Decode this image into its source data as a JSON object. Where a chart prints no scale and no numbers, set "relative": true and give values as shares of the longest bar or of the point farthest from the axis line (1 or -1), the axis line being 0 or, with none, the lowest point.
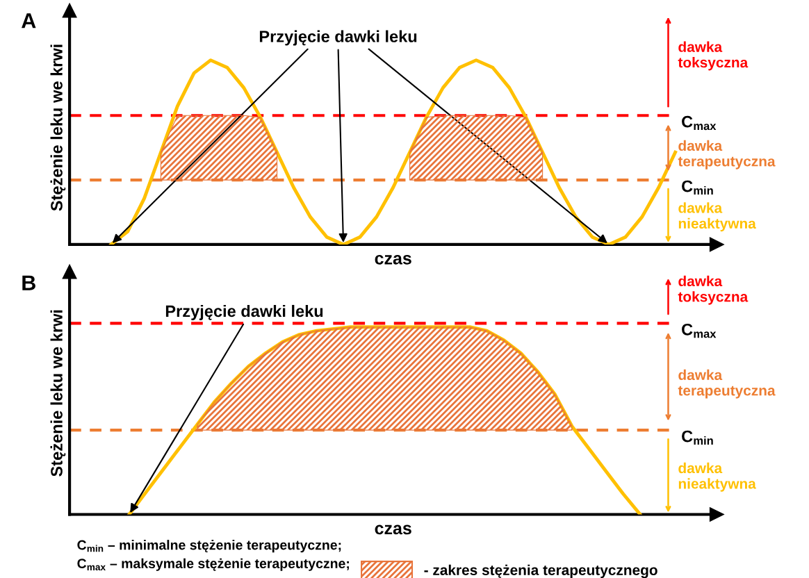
{
  "chart_data": [
    {
      "type": "line",
      "title": "A",
      "relative": true,
      "xlabel": "czas",
      "ylabel": "Stężenie leku we krwi",
      "categories": [
        null,
        null,
        null,
        null,
        null,
        null,
        null,
        null,
        null,
        null,
        null,
        null,
        null,
        null,
        null,
        null,
        null,
        null,
        null,
        null,
        null,
        null,
        null,
        null,
        null,
        null,
        null,
        null,
        null,
        null,
        null,
        null,
        null,
        null,
        null,
        null,
        null,
        null,
        null
      ],
      "series": [
        {
          "color": "#ffc000",
          "values": [
            null,
            null,
            0,
            0.07,
            0.25,
            0.5,
            0.75,
            0.93,
            1,
            0.96,
            0.85,
            0.69,
            0.5,
            0.31,
            0.15,
            0.04,
            0,
            0.04,
            0.15,
            0.31,
            0.5,
            0.69,
            0.85,
            0.96,
            1,
            0.96,
            0.85,
            0.69,
            0.5,
            0.31,
            0.15,
            0.04,
            0,
            0.04,
            0.15,
            0.31,
            0.5,
            null,
            null
          ]
        },
        {
          "type": "area",
          "color": "#e8743b",
          "values": [
            null,
            null,
            null,
            null,
            null,
            0.5,
            0.7,
            0.7,
            0.7,
            0.7,
            0.7,
            0.69,
            0.5,
            null,
            null,
            null,
            null,
            null,
            null,
            null,
            0.5,
            0.69,
            0.7,
            0.7,
            0.7,
            0.7,
            0.7,
            0.69,
            0.5,
            null,
            null,
            null,
            null,
            null,
            null,
            null,
            null,
            null,
            null
          ]
        }
      ],
      "ref_lines": [
        {
          "axis": "y",
          "value": 0.7,
          "label": "C$_{max}$",
          "color": "#ff0000",
          "line_style": "dashed"
        },
        {
          "axis": "y",
          "value": 0.35,
          "label": "C$_{min}$",
          "color": "#ed7d31",
          "line_style": "dashed"
        }
      ],
      "annotations": [
        "Przyjęcie dawki leku",
        "dawka\ntoksyczna",
        "dawka\nterapeutyczna",
        "dawka\nnieaktywna"
      ],
      "grid": false,
      "legend": false,
      "marker": "none",
      "line_style": "solid"
    },
    {
      "type": "line",
      "title": "B",
      "relative": true,
      "xlabel": "czas",
      "ylabel": "Stężenie leku we krwi",
      "categories": [
        null,
        null,
        null,
        null,
        null,
        null,
        null,
        null,
        null,
        null,
        null,
        null,
        null,
        null,
        null,
        null,
        null,
        null,
        null,
        null,
        null,
        null,
        null,
        null,
        null,
        null,
        null,
        null,
        null,
        null,
        null,
        null,
        null,
        null,
        null,
        null,
        null,
        null
      ],
      "series": [
        {
          "color": "#ffc000",
          "values": [
            null,
            null,
            null,
            0,
            0.12,
            0.24,
            0.36,
            0.48,
            0.6,
            0.7,
            0.79,
            0.86,
            0.92,
            0.96,
            0.98,
            0.99,
            1,
            1,
            1,
            1,
            1,
            1,
            1,
            1,
            0.98,
            0.93,
            0.86,
            0.76,
            0.64,
            0.47,
            0.35,
            0.23,
            0.11,
            0,
            null,
            null,
            null,
            null
          ]
        },
        {
          "type": "area",
          "name": "- zakres stężenia terapeutycznego",
          "color": "#e8743b",
          "values": [
            null,
            null,
            null,
            null,
            null,
            null,
            null,
            0.48,
            0.6,
            0.7,
            0.79,
            0.86,
            0.92,
            0.96,
            0.98,
            0.99,
            1,
            1,
            1,
            1,
            1,
            1,
            1,
            1,
            0.98,
            0.93,
            0.86,
            0.76,
            0.64,
            0.47,
            null,
            null,
            null,
            null,
            null,
            null,
            null,
            null
          ]
        }
      ],
      "ref_lines": [
        {
          "axis": "y",
          "value": 1.02,
          "label": "C$_{max}$",
          "color": "#ff0000",
          "line_style": "dashed"
        },
        {
          "axis": "y",
          "value": 0.45,
          "label": "C$_{min}$",
          "color": "#ed7d31",
          "line_style": "dashed"
        }
      ],
      "annotations": [
        "Przyjęcie dawki leku",
        "dawka\ntoksyczna",
        "dawka\nterapeutyczna",
        "dawka\nnieaktywna",
        "C$_{min}$ – minimalne stężenie terapeutyczne;",
        "C$_{max}$ – maksymale stężenie terapeutyczne;"
      ],
      "grid": false,
      "legend": "bottom",
      "marker": "none",
      "line_style": "solid"
    }
  ]
}
